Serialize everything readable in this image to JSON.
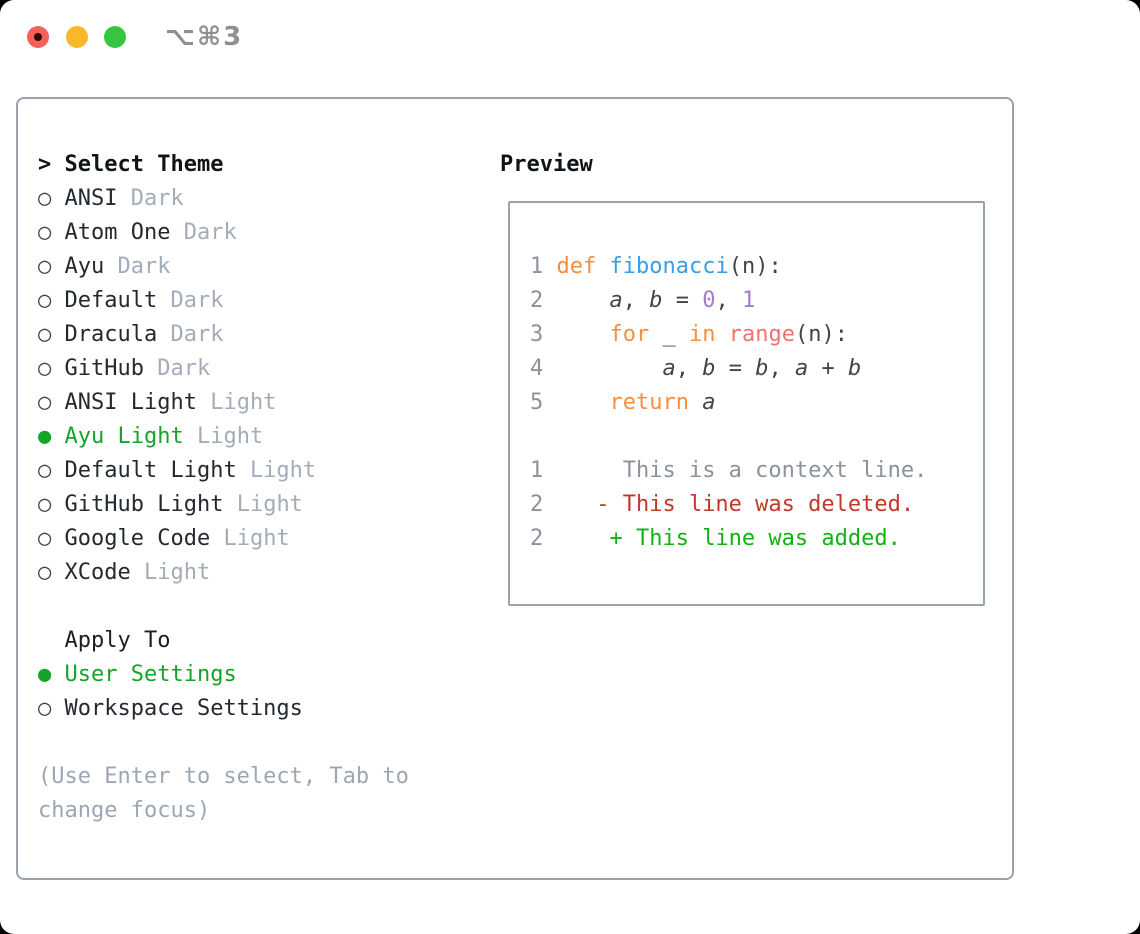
{
  "titlebar": {
    "shortcut": "⌥⌘3",
    "traffic_lights": {
      "close": "#f4615a",
      "minimize": "#f7b82a",
      "zoom": "#35c53e"
    }
  },
  "theme_panel": {
    "header": {
      "prompt": ">",
      "label": "Select Theme"
    },
    "themes": [
      {
        "name": "ANSI",
        "variant": "Dark",
        "selected": false
      },
      {
        "name": "Atom One",
        "variant": "Dark",
        "selected": false
      },
      {
        "name": "Ayu",
        "variant": "Dark",
        "selected": false
      },
      {
        "name": "Default",
        "variant": "Dark",
        "selected": false
      },
      {
        "name": "Dracula",
        "variant": "Dark",
        "selected": false
      },
      {
        "name": "GitHub",
        "variant": "Dark",
        "selected": false
      },
      {
        "name": "ANSI Light",
        "variant": "Light",
        "selected": false
      },
      {
        "name": "Ayu Light",
        "variant": "Light",
        "selected": true
      },
      {
        "name": "Default Light",
        "variant": "Light",
        "selected": false
      },
      {
        "name": "GitHub Light",
        "variant": "Light",
        "selected": false
      },
      {
        "name": "Google Code",
        "variant": "Light",
        "selected": false
      },
      {
        "name": "XCode",
        "variant": "Light",
        "selected": false
      }
    ],
    "apply_to": {
      "label": "Apply To",
      "options": [
        {
          "label": "User Settings",
          "selected": true
        },
        {
          "label": "Workspace Settings",
          "selected": false
        }
      ]
    },
    "help_lines": [
      "(Use Enter to select, Tab to",
      "change focus)"
    ]
  },
  "preview": {
    "title": "Preview",
    "code_lines": [
      [
        [
          "ln",
          "1 "
        ],
        [
          "kw",
          "def"
        ],
        [
          "plain",
          " "
        ],
        [
          "fn",
          "fibonacci"
        ],
        [
          "plain",
          "(n):"
        ]
      ],
      [
        [
          "ln",
          "2 "
        ],
        [
          "plain",
          "    "
        ],
        [
          "var",
          "a"
        ],
        [
          "plain",
          ", "
        ],
        [
          "var",
          "b"
        ],
        [
          "plain",
          " = "
        ],
        [
          "const",
          "0"
        ],
        [
          "plain",
          ", "
        ],
        [
          "const",
          "1"
        ]
      ],
      [
        [
          "ln",
          "3 "
        ],
        [
          "plain",
          "    "
        ],
        [
          "kw",
          "for"
        ],
        [
          "plain",
          " _ "
        ],
        [
          "kw",
          "in"
        ],
        [
          "plain",
          " "
        ],
        [
          "rng",
          "range"
        ],
        [
          "plain",
          "(n):"
        ]
      ],
      [
        [
          "ln",
          "4 "
        ],
        [
          "plain",
          "        "
        ],
        [
          "var",
          "a"
        ],
        [
          "plain",
          ", "
        ],
        [
          "var",
          "b"
        ],
        [
          "plain",
          " = "
        ],
        [
          "var",
          "b"
        ],
        [
          "plain",
          ", "
        ],
        [
          "var",
          "a"
        ],
        [
          "plain",
          " + "
        ],
        [
          "var",
          "b"
        ]
      ],
      [
        [
          "ln",
          "5 "
        ],
        [
          "plain",
          "    "
        ],
        [
          "kw",
          "return"
        ],
        [
          "plain",
          " "
        ],
        [
          "var",
          "a"
        ]
      ],
      [],
      [
        [
          "ln",
          "1"
        ],
        [
          "ctx",
          "      This is a context line."
        ]
      ],
      [
        [
          "ln",
          "2"
        ],
        [
          "del",
          "    - This line was deleted."
        ]
      ],
      [
        [
          "ln",
          "2"
        ],
        [
          "add",
          "     + This line was added."
        ]
      ]
    ]
  },
  "colors": {
    "selection_green": "#16a329",
    "muted_gray": "#a3acb8",
    "panel_border": "#9aa2ae",
    "syntax": {
      "keyword_orange": "#fa8d3e",
      "function_blue": "#399ee6",
      "constant_purple": "#a37acc",
      "builtin_salmon": "#f07171",
      "foreground": "#40454c",
      "line_number": "#8b929c"
    },
    "diff": {
      "context": "#8b929c",
      "deleted_red": "#c0392b",
      "added_green": "#12b212"
    }
  }
}
